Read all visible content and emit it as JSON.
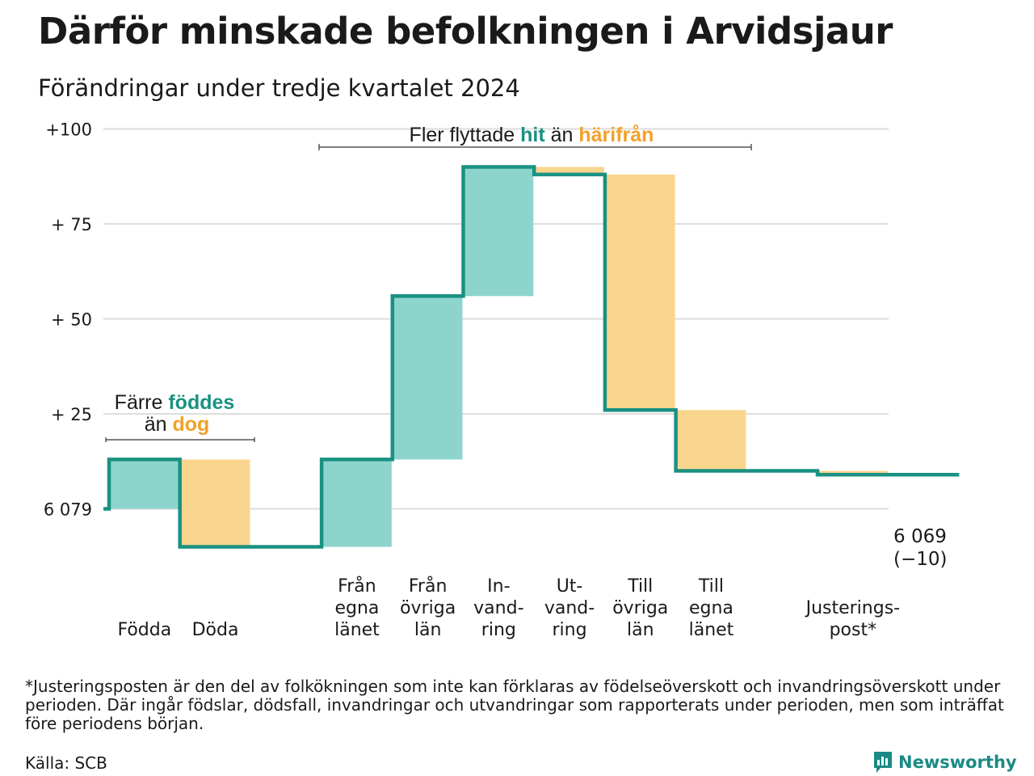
{
  "title": "Därför minskade befolkningen i Arvidsjaur",
  "subtitle": "Förändringar under tredje kvartalet 2024",
  "colors": {
    "increase": "#8dd5cc",
    "decrease": "#f9d58e",
    "line": "#1a9182",
    "teal_text": "#1a9182",
    "orange_text": "#f2a12a",
    "grid": "#dddddd"
  },
  "chart_data": {
    "type": "waterfall",
    "y_axis": {
      "ticks": [
        0,
        25,
        50,
        75,
        100
      ],
      "tick_labels": [
        "6 079",
        "+ 25",
        "+ 50",
        "+ 75",
        "+100"
      ],
      "range": [
        -14,
        100
      ],
      "base_population": 6079
    },
    "steps": [
      {
        "label": [
          "Födda"
        ],
        "change": 13,
        "direction": "increase"
      },
      {
        "label": [
          "Döda"
        ],
        "change": -23,
        "direction": "decrease"
      },
      {
        "label": [],
        "change": 0,
        "direction": "none"
      },
      {
        "label": [
          "Från",
          "egna",
          "länet"
        ],
        "change": 23,
        "direction": "increase"
      },
      {
        "label": [
          "Från",
          "övriga",
          "län"
        ],
        "change": 43,
        "direction": "increase"
      },
      {
        "label": [
          "In-",
          "vand-",
          "ring"
        ],
        "change": 34,
        "direction": "increase"
      },
      {
        "label": [
          "Ut-",
          "vand-",
          "ring"
        ],
        "change": -2,
        "direction": "decrease"
      },
      {
        "label": [
          "Till",
          "övriga",
          "län"
        ],
        "change": -62,
        "direction": "decrease"
      },
      {
        "label": [
          "Till",
          "egna",
          "länet"
        ],
        "change": -16,
        "direction": "decrease"
      },
      {
        "label": [],
        "change": 0,
        "direction": "none"
      },
      {
        "label": [
          "Justerings-",
          "post*"
        ],
        "change": -1,
        "direction": "decrease"
      },
      {
        "label": [],
        "change": 0,
        "direction": "none"
      }
    ],
    "end_value_label": "6 069",
    "end_change_label": "(−10)",
    "annotations": {
      "births": {
        "line1_plain": "Färre ",
        "line1_teal": "föddes",
        "line2_plain": "än ",
        "line2_orange": "dog"
      },
      "migration": {
        "plain1": "Fler flyttade ",
        "teal": "hit",
        "plain2": " än ",
        "orange": "härifrån"
      }
    }
  },
  "footnote": "*Justeringsposten är den del av folkökningen som inte kan förklaras av födelseöverskott och invandringsöverskott under perioden. Där ingår födslar, dödsfall, invandringar och utvandringar som rapporterats under perioden, men som inträffat före periodens början.",
  "source": "Källa: SCB",
  "brand": {
    "name": "Newsworthy",
    "icon": "newsworthy-logo-icon"
  }
}
